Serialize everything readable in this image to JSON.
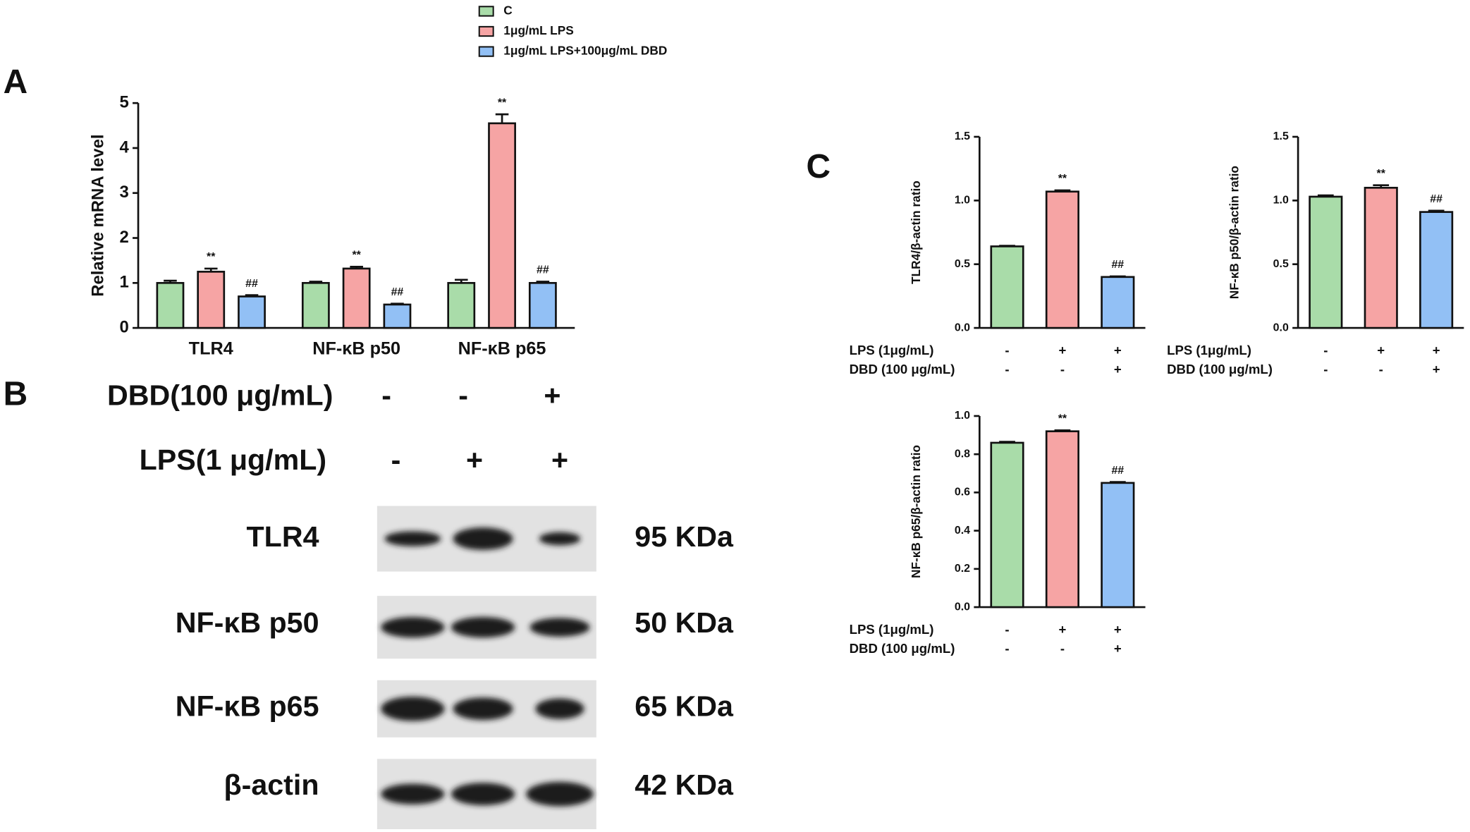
{
  "panels": [
    "A",
    "B",
    "C"
  ],
  "chart_data": [
    {
      "type": "bar",
      "ylabel": "Relative mRNA level",
      "categories": [
        "TLR4",
        "NF-κB p50",
        "NF-κB p65"
      ],
      "series": [
        {
          "name": "C",
          "color": "#a9dca9",
          "values": [
            1.0,
            1.0,
            1.0
          ],
          "errors": [
            0.05,
            0.03,
            0.07
          ]
        },
        {
          "name": "1μg/mL LPS",
          "color": "#f6a4a4",
          "values": [
            1.25,
            1.32,
            4.55
          ],
          "errors": [
            0.07,
            0.04,
            0.2
          ],
          "annotations": [
            "**",
            "**",
            "**"
          ]
        },
        {
          "name": "1μg/mL LPS+100μg/mL DBD",
          "color": "#92c0f5",
          "values": [
            0.7,
            0.52,
            1.0
          ],
          "errors": [
            0.03,
            0.02,
            0.03
          ],
          "annotations": [
            "##",
            "##",
            "##"
          ]
        }
      ],
      "ylim": [
        0,
        5
      ],
      "yticks": [
        0,
        1,
        2,
        3,
        4,
        5
      ]
    },
    {
      "type": "bar",
      "ylabel": "TLR4/β-actin ratio",
      "values": [
        0.64,
        1.07,
        0.4
      ],
      "errors": [
        0.005,
        0.01,
        0.005
      ],
      "colors": [
        "#a9dca9",
        "#f6a4a4",
        "#92c0f5"
      ],
      "annotations": [
        null,
        "**",
        "##"
      ],
      "conditions": [
        {
          "label": "LPS  (1μg/mL)",
          "marks": [
            "-",
            "+",
            "+"
          ]
        },
        {
          "label": "DBD (100 μg/mL)",
          "marks": [
            "-",
            "-",
            "+"
          ]
        }
      ],
      "ylim": [
        0,
        1.5
      ],
      "yticks": [
        {
          "value": 0,
          "label": "0.0"
        },
        {
          "value": 0.5,
          "label": "0.5"
        },
        {
          "value": 1,
          "label": "1.0"
        },
        {
          "value": 1.5,
          "label": "1.5"
        }
      ]
    },
    {
      "type": "bar",
      "ylabel": "NF-κB p50/β-actin ratio",
      "values": [
        1.03,
        1.1,
        0.91
      ],
      "errors": [
        0.01,
        0.02,
        0.01
      ],
      "colors": [
        "#a9dca9",
        "#f6a4a4",
        "#92c0f5"
      ],
      "annotations": [
        null,
        "**",
        "##"
      ],
      "conditions": [
        {
          "label": "LPS  (1μg/mL)",
          "marks": [
            "-",
            "+",
            "+"
          ]
        },
        {
          "label": "DBD (100 μg/mL)",
          "marks": [
            "-",
            "-",
            "+"
          ]
        }
      ],
      "ylim": [
        0,
        1.5
      ],
      "yticks": [
        {
          "value": 0,
          "label": "0.0"
        },
        {
          "value": 0.5,
          "label": "0.5"
        },
        {
          "value": 1,
          "label": "1.0"
        },
        {
          "value": 1.5,
          "label": "1.5"
        }
      ]
    },
    {
      "type": "bar",
      "ylabel": "NF-κB p65/β-actin ratio",
      "values": [
        0.86,
        0.92,
        0.65
      ],
      "errors": [
        0.005,
        0.005,
        0.005
      ],
      "colors": [
        "#a9dca9",
        "#f6a4a4",
        "#92c0f5"
      ],
      "annotations": [
        null,
        "**",
        "##"
      ],
      "conditions": [
        {
          "label": "LPS  (1μg/mL)",
          "marks": [
            "-",
            "+",
            "+"
          ]
        },
        {
          "label": "DBD (100 μg/mL)",
          "marks": [
            "-",
            "-",
            "+"
          ]
        }
      ],
      "ylim": [
        0,
        1.0
      ],
      "yticks": [
        {
          "value": 0,
          "label": "0.0"
        },
        {
          "value": 0.2,
          "label": "0.2"
        },
        {
          "value": 0.4,
          "label": "0.4"
        },
        {
          "value": 0.6,
          "label": "0.6"
        },
        {
          "value": 0.8,
          "label": "0.8"
        },
        {
          "value": 1,
          "label": "1.0"
        }
      ]
    }
  ],
  "blot": {
    "treatments": [
      {
        "label": "DBD(100 μg/mL)",
        "marks": [
          "-",
          "-",
          "+"
        ]
      },
      {
        "label": "LPS(1 μg/mL)",
        "marks": [
          "-",
          "+",
          "+"
        ]
      }
    ],
    "rows": [
      {
        "protein": "TLR4",
        "size": "95 KDa"
      },
      {
        "protein": "NF-κB p50",
        "size": "50 KDa"
      },
      {
        "protein": "NF-κB p65",
        "size": "65 KDa"
      },
      {
        "protein": "β-actin",
        "size": "42 KDa"
      }
    ]
  }
}
